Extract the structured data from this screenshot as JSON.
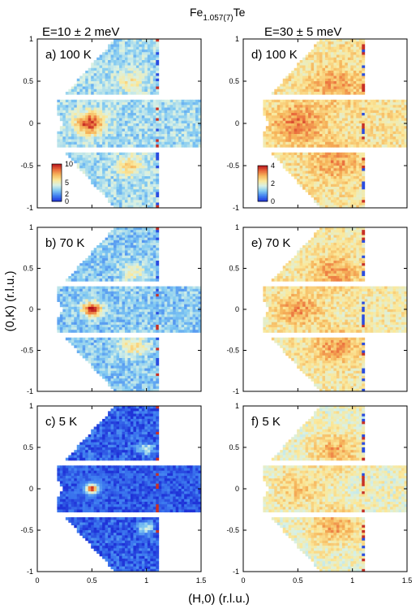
{
  "figure": {
    "title_main": "Fe",
    "title_sub": "1.057(7)",
    "title_tail": "Te",
    "col_left_title": "E=10 ± 2 meV",
    "col_right_title": "E=30 ± 5 meV",
    "xlabel": "(H,0) (r.l.u.)",
    "ylabel": "(0,K) (r.l.u.)",
    "colormap": [
      "#1f33d8",
      "#3e7df0",
      "#7fc8f2",
      "#d8f1e6",
      "#fbe89a",
      "#f6b55b",
      "#e9673a",
      "#b5121b"
    ]
  },
  "chart_data": [
    {
      "type": "heatmap",
      "panel_label": "a) 100 K",
      "energy": "E=10 ± 2 meV",
      "temperature_K": 100,
      "xlim": [
        0,
        1.5
      ],
      "ylim": [
        -1,
        1
      ],
      "xticks": [
        "0",
        "0.5",
        "1",
        "1.5"
      ],
      "yticks": [
        "1",
        "0.5",
        "0",
        "-0.5",
        "-1"
      ],
      "colorbar": {
        "range": [
          0,
          10
        ],
        "ticks": [
          "10",
          "5",
          "2",
          "0"
        ]
      },
      "features": [
        {
          "x": 0.48,
          "y": 0,
          "intensity": 9.5,
          "width": 0.09
        },
        {
          "x": 0.85,
          "y": -0.5,
          "intensity": 6,
          "width": 0.09
        },
        {
          "x": 0.85,
          "y": 0.5,
          "intensity": 5.5,
          "width": 0.09
        }
      ],
      "background": 3.5
    },
    {
      "type": "heatmap",
      "panel_label": "b) 70 K",
      "energy": "E=10 ± 2 meV",
      "temperature_K": 70,
      "xlim": [
        0,
        1.5
      ],
      "ylim": [
        -1,
        1
      ],
      "xticks": [
        "0",
        "0.5",
        "1",
        "1.5"
      ],
      "yticks": [
        "1",
        "0.5",
        "0",
        "-0.5",
        "-1"
      ],
      "features": [
        {
          "x": 0.5,
          "y": 0,
          "intensity": 10,
          "width": 0.06
        },
        {
          "x": 0.88,
          "y": -0.45,
          "intensity": 6,
          "width": 0.09
        },
        {
          "x": 0.88,
          "y": 0.45,
          "intensity": 5,
          "width": 0.09
        }
      ],
      "background": 3
    },
    {
      "type": "heatmap",
      "panel_label": "c) 5 K",
      "energy": "E=10 ± 2 meV",
      "temperature_K": 5,
      "xlim": [
        0,
        1.5
      ],
      "ylim": [
        -1,
        1
      ],
      "xticks": [
        "0",
        "0.5",
        "1",
        "1.5"
      ],
      "yticks": [
        "1",
        "0.5",
        "0",
        "-0.5",
        "-1"
      ],
      "features": [
        {
          "x": 0.5,
          "y": 0,
          "intensity": 10,
          "width": 0.035
        },
        {
          "x": 0.5,
          "y": 0,
          "intensity": 3,
          "width": 0.07
        },
        {
          "x": 1.0,
          "y": -0.48,
          "intensity": 4,
          "width": 0.05
        },
        {
          "x": 1.0,
          "y": 0.48,
          "intensity": 4,
          "width": 0.05
        }
      ],
      "background": 0.8
    },
    {
      "type": "heatmap",
      "panel_label": "d) 100 K",
      "energy": "E=30 ± 5 meV",
      "temperature_K": 100,
      "xlim": [
        0,
        1.5
      ],
      "ylim": [
        -1,
        1
      ],
      "xticks": [
        "0",
        "0.5",
        "1",
        "1.5"
      ],
      "yticks": [
        "1",
        "0.5",
        "0",
        "-0.5",
        "-1"
      ],
      "colorbar": {
        "range": [
          0,
          4
        ],
        "ticks": [
          "4",
          "2",
          "0"
        ]
      },
      "features": [
        {
          "x": 0.5,
          "y": 0,
          "intensity": 3.2,
          "width": 0.16
        },
        {
          "x": 0.85,
          "y": -0.45,
          "intensity": 3.0,
          "width": 0.15
        },
        {
          "x": 0.85,
          "y": 0.45,
          "intensity": 3.0,
          "width": 0.15
        }
      ],
      "background": 2.3
    },
    {
      "type": "heatmap",
      "panel_label": "e) 70 K",
      "energy": "E=30 ± 5 meV",
      "temperature_K": 70,
      "xlim": [
        0,
        1.5
      ],
      "ylim": [
        -1,
        1
      ],
      "xticks": [
        "0",
        "0.5",
        "1",
        "1.5"
      ],
      "yticks": [
        "1",
        "0.5",
        "0",
        "-0.5",
        "-1"
      ],
      "features": [
        {
          "x": 0.5,
          "y": 0,
          "intensity": 3.0,
          "width": 0.14
        },
        {
          "x": 0.85,
          "y": -0.45,
          "intensity": 3.0,
          "width": 0.15
        },
        {
          "x": 0.85,
          "y": 0.45,
          "intensity": 3.0,
          "width": 0.15
        }
      ],
      "background": 2.2
    },
    {
      "type": "heatmap",
      "panel_label": "f) 5 K",
      "energy": "E=30 ± 5 meV",
      "temperature_K": 5,
      "xlim": [
        0,
        1.5
      ],
      "ylim": [
        -1,
        1
      ],
      "xticks": [
        "0",
        "0.5",
        "1",
        "1.5"
      ],
      "yticks": [
        "1",
        "0.5",
        "0",
        "-0.5",
        "-1"
      ],
      "features": [
        {
          "x": 0.5,
          "y": 0,
          "intensity": 2.6,
          "width": 0.16
        },
        {
          "x": 0.85,
          "y": -0.45,
          "intensity": 2.9,
          "width": 0.15
        },
        {
          "x": 0.85,
          "y": 0.45,
          "intensity": 2.9,
          "width": 0.15
        }
      ],
      "background": 2.0
    }
  ]
}
